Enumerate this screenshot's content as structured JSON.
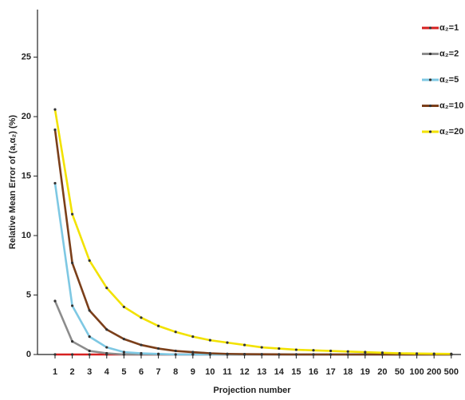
{
  "chart_data": {
    "type": "line",
    "y_label": "Relative Mean Error of (a,α₂) (%)",
    "x_label": "Projection number",
    "categories": [
      "1",
      "2",
      "3",
      "4",
      "5",
      "6",
      "7",
      "8",
      "9",
      "10",
      "11",
      "12",
      "13",
      "14",
      "15",
      "16",
      "17",
      "18",
      "19",
      "20",
      "50",
      "100",
      "200",
      "500"
    ],
    "ylim": [
      0,
      29
    ],
    "yticks": [
      0,
      5,
      10,
      15,
      20,
      25
    ],
    "legend": "upper right",
    "series": [
      {
        "name": "α₂=1",
        "color": "#d62020",
        "values": [
          0,
          0,
          0,
          0,
          0,
          0,
          0,
          0,
          0,
          0,
          0,
          0,
          0,
          0,
          0,
          0,
          0,
          0,
          0,
          0,
          0,
          0,
          0,
          0
        ]
      },
      {
        "name": "α₂=2",
        "color": "#8c8c8c",
        "values": [
          4.5,
          1.1,
          0.3,
          0.1,
          0,
          0,
          0,
          0,
          0,
          0,
          0,
          0,
          0,
          0,
          0,
          0,
          0,
          0,
          0,
          0,
          0,
          0,
          0,
          0
        ]
      },
      {
        "name": "α₂=5",
        "color": "#7ec8e3",
        "values": [
          14.4,
          4.1,
          1.5,
          0.6,
          0.2,
          0.1,
          0.05,
          0,
          0,
          0,
          0,
          0,
          0,
          0,
          0,
          0,
          0,
          0,
          0,
          0,
          0,
          0,
          0,
          0
        ]
      },
      {
        "name": "α₂=10",
        "color": "#7b3f1a",
        "values": [
          18.9,
          7.7,
          3.7,
          2.1,
          1.3,
          0.8,
          0.5,
          0.3,
          0.2,
          0.1,
          0.05,
          0.03,
          0.02,
          0.01,
          0,
          0,
          0,
          0,
          0,
          0,
          0,
          0,
          0,
          0
        ]
      },
      {
        "name": "α₂=20",
        "color": "#f2e200",
        "values": [
          20.6,
          11.8,
          7.9,
          5.6,
          4.0,
          3.1,
          2.4,
          1.9,
          1.5,
          1.2,
          1.0,
          0.8,
          0.6,
          0.5,
          0.4,
          0.35,
          0.3,
          0.25,
          0.2,
          0.15,
          0.1,
          0.08,
          0.06,
          0.05
        ]
      }
    ]
  }
}
